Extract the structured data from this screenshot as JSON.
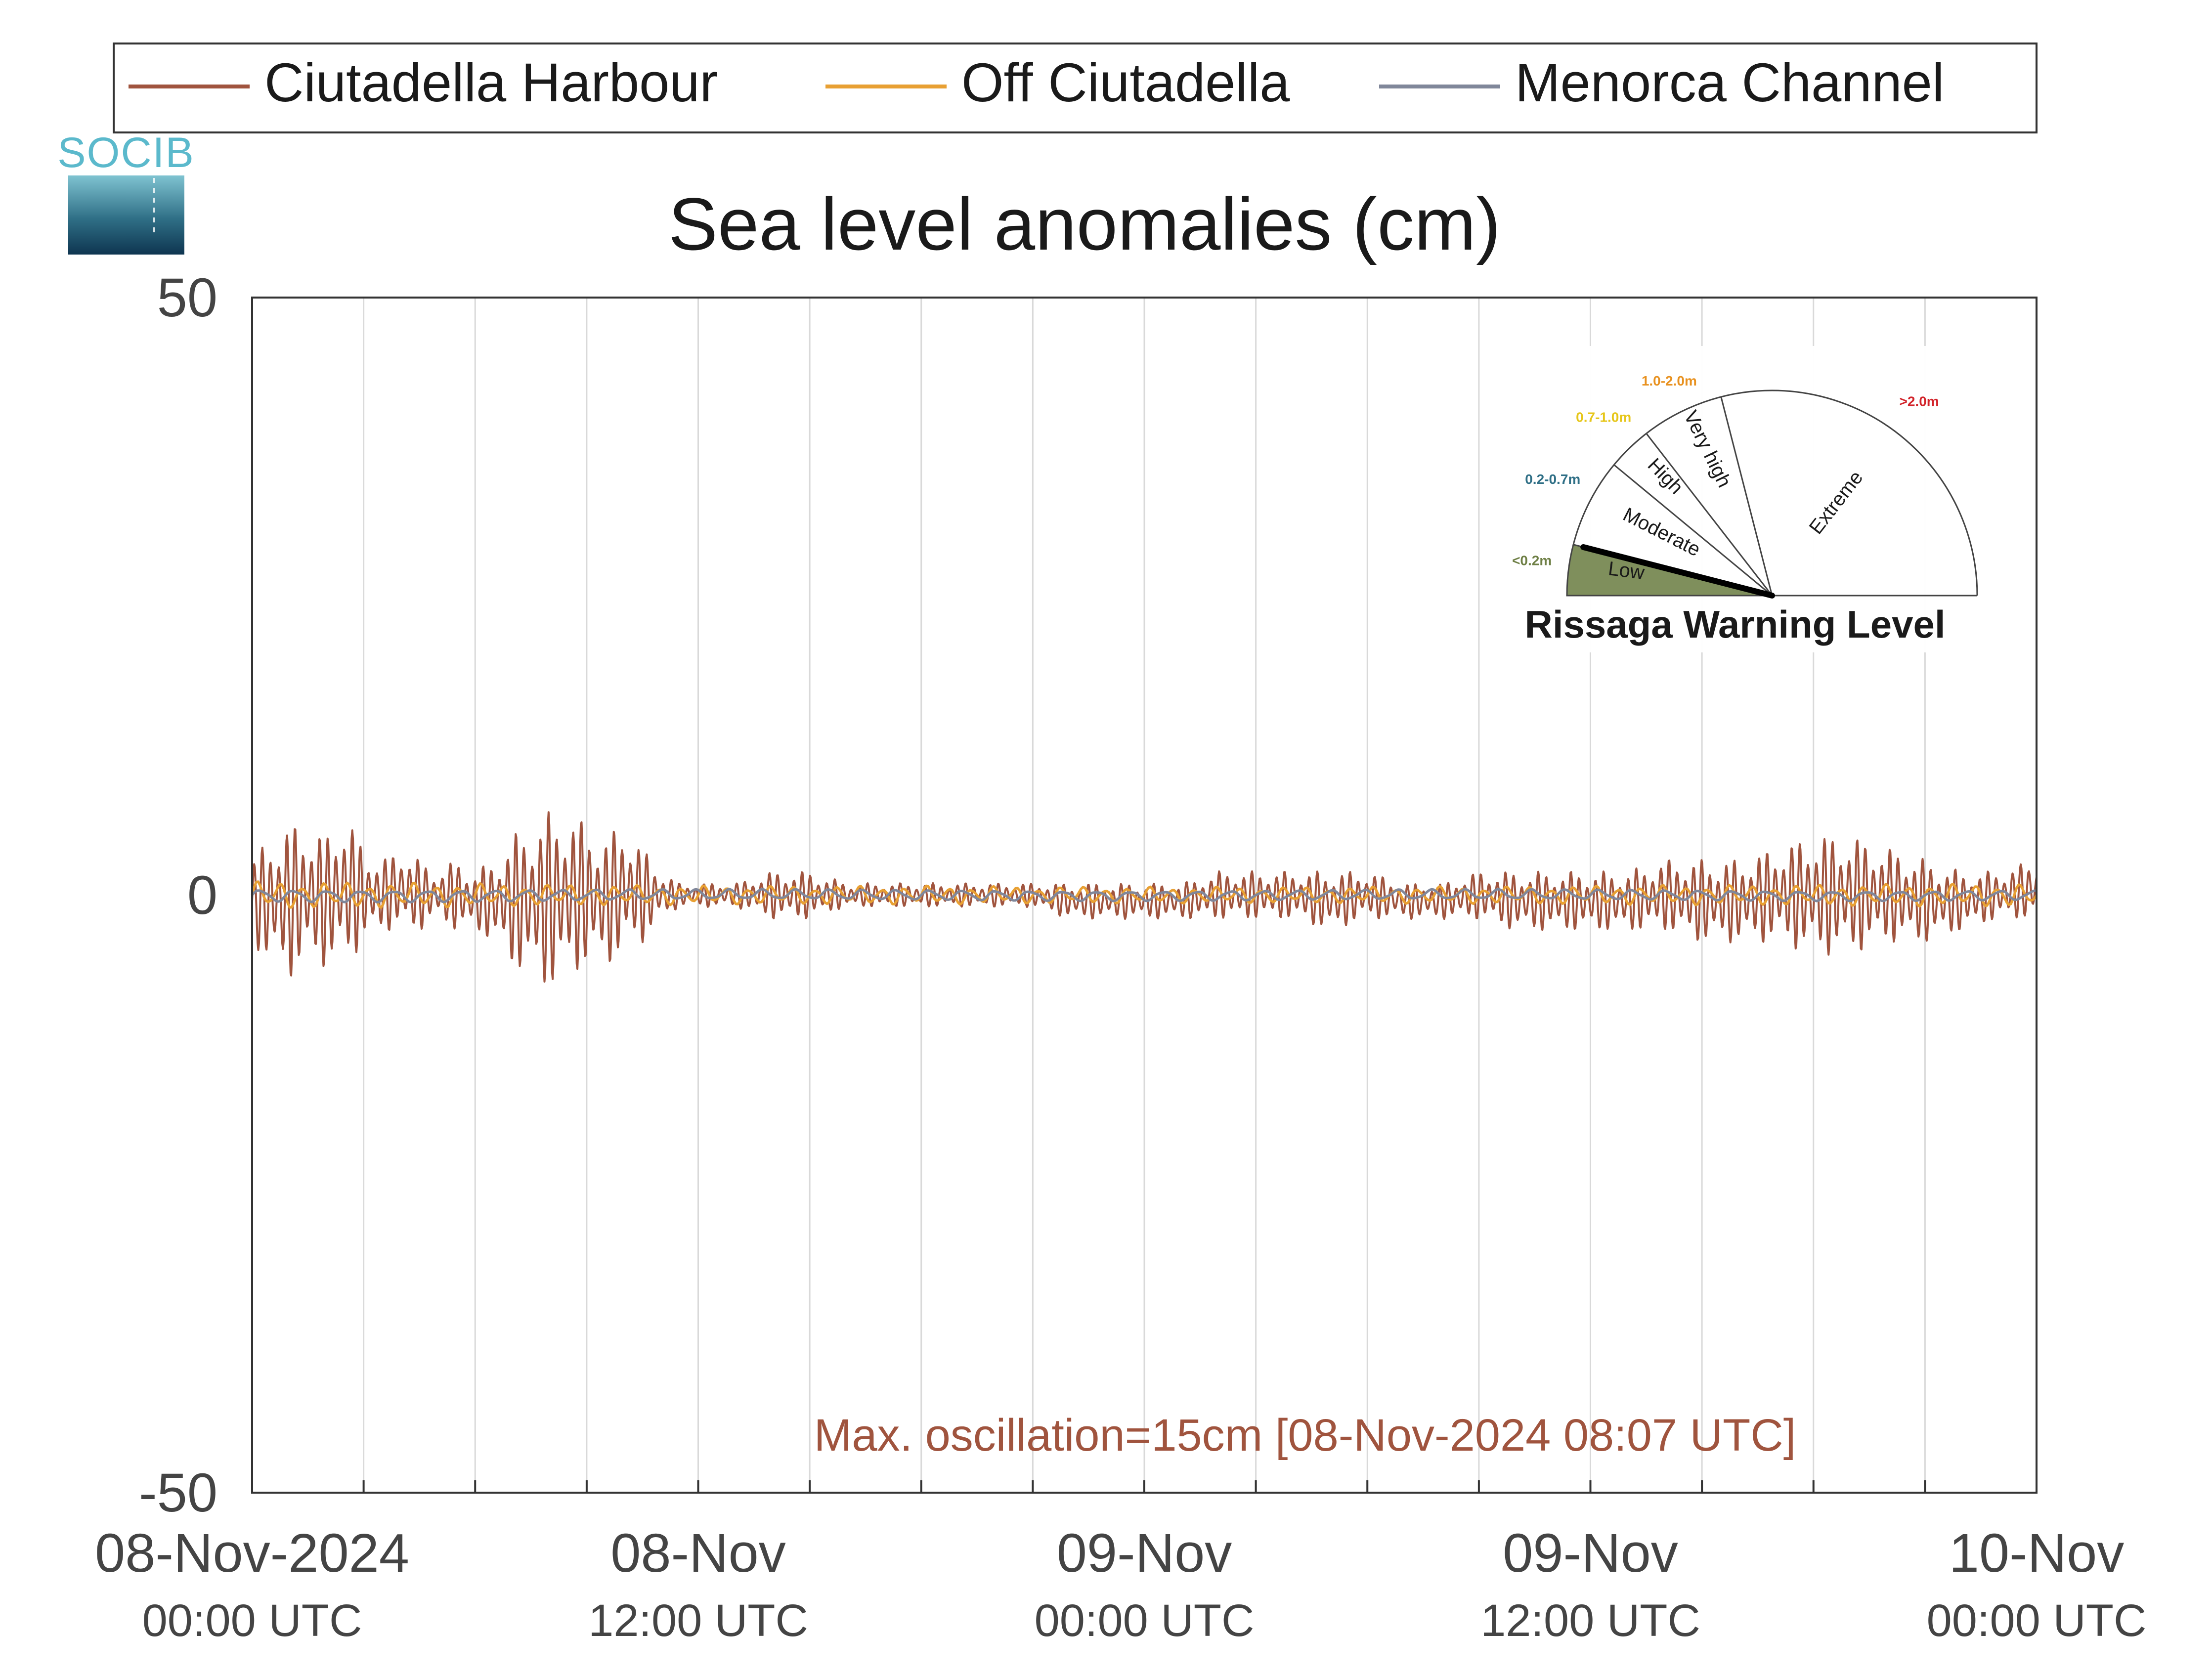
{
  "chart_data": {
    "type": "line",
    "title": "Sea level anomalies (cm)",
    "logo": "SOCIB",
    "ylabel": "",
    "xlabel": "",
    "ylim": [
      -50,
      50
    ],
    "y_ticks": [
      {
        "value": 50,
        "label": "50"
      },
      {
        "value": 0,
        "label": "0"
      },
      {
        "value": -50,
        "label": "-50"
      }
    ],
    "x_range_hours": [
      0,
      48
    ],
    "x_ticks": [
      {
        "hour": 0,
        "date": "08-Nov-2024",
        "time": "00:00 UTC"
      },
      {
        "hour": 12,
        "date": "08-Nov",
        "time": "12:00 UTC"
      },
      {
        "hour": 24,
        "date": "09-Nov",
        "time": "00:00 UTC"
      },
      {
        "hour": 36,
        "date": "09-Nov",
        "time": "12:00 UTC"
      },
      {
        "hour": 48,
        "date": "10-Nov",
        "time": "00:00 UTC"
      }
    ],
    "grid": "vertical",
    "legend_position": "top",
    "series": [
      {
        "name": "Ciutadella Harbour",
        "color": "#a0543e",
        "x": [
          0,
          0.5,
          1,
          1.5,
          2,
          2.5,
          3,
          3.5,
          4,
          4.5,
          5,
          5.5,
          6,
          6.5,
          7,
          7.5,
          8,
          8.5,
          9,
          9.5,
          10,
          10.5,
          11,
          11.5,
          12,
          13,
          14,
          15,
          16,
          17,
          18,
          19,
          20,
          21,
          22,
          23,
          24,
          25,
          26,
          27,
          28,
          29,
          30,
          31,
          32,
          33,
          34,
          35,
          36,
          37,
          38,
          39,
          40,
          41,
          42,
          43,
          44,
          45,
          46,
          47,
          48
        ],
        "upper": [
          3,
          5,
          6,
          6,
          5,
          7,
          4,
          3,
          4,
          3,
          2,
          3,
          2,
          3,
          5,
          6,
          7,
          7,
          6,
          5,
          6,
          4,
          2,
          1,
          1,
          1,
          2,
          2,
          1,
          1,
          1,
          1,
          1,
          1,
          1,
          1,
          1,
          1,
          2,
          2,
          2,
          2,
          2,
          1,
          1,
          2,
          2,
          2,
          2,
          2,
          3,
          3,
          3,
          4,
          5,
          5,
          4,
          3,
          2,
          2,
          3
        ],
        "lower": [
          -4,
          -6,
          -7,
          -6,
          -6,
          -6,
          -4,
          -3,
          -3,
          -3,
          -2,
          -3,
          -3,
          -4,
          -6,
          -7,
          -8,
          -7,
          -6,
          -6,
          -5,
          -4,
          -2,
          -1,
          -1,
          -1,
          -2,
          -2,
          -1,
          -1,
          -1,
          -1,
          -1,
          -1,
          -2,
          -2,
          -2,
          -2,
          -2,
          -2,
          -2,
          -3,
          -2,
          -2,
          -2,
          -2,
          -3,
          -3,
          -3,
          -3,
          -3,
          -4,
          -4,
          -4,
          -5,
          -5,
          -4,
          -4,
          -3,
          -2,
          -2
        ]
      },
      {
        "name": "Off Ciutadella",
        "color": "#e8a033",
        "x": [
          0,
          6,
          12,
          18,
          24,
          30,
          36,
          42,
          48
        ],
        "upper": [
          1.2,
          1,
          0.8,
          0.8,
          0.7,
          0.7,
          0.8,
          0.9,
          1
        ],
        "lower": [
          -1.2,
          -1,
          -0.8,
          -0.8,
          -0.7,
          -0.7,
          -0.8,
          -0.9,
          -1
        ]
      },
      {
        "name": "Menorca Channel",
        "color": "#80879a",
        "x": [
          0,
          6,
          12,
          18,
          24,
          30,
          36,
          42,
          48
        ],
        "upper": [
          0.6,
          0.6,
          0.5,
          0.5,
          0.5,
          0.5,
          0.5,
          0.5,
          0.5
        ],
        "lower": [
          -0.6,
          -0.6,
          -0.5,
          -0.5,
          -0.5,
          -0.5,
          -0.5,
          -0.5,
          -0.5
        ]
      }
    ],
    "annotation": "Max. oscillation=15cm [08-Nov-2024 08:07 UTC]",
    "annotation_color": "#a0543e",
    "gauge": {
      "title": "Rissaga Warning Level",
      "needle_level": "Low",
      "needle_fraction": 0.08,
      "needle_color": "#000000",
      "low_fill_color": "#7f8f5c",
      "sectors": [
        {
          "name": "Low",
          "range": "<0.2m",
          "range_color": "#6e7f45"
        },
        {
          "name": "Moderate",
          "range": "0.2-0.7m",
          "range_color": "#2f6f86"
        },
        {
          "name": "High",
          "range": "0.7-1.0m",
          "range_color": "#e6c619"
        },
        {
          "name": "Very high",
          "range": "1.0-2.0m",
          "range_color": "#e8911f"
        },
        {
          "name": "Extreme",
          "range": ">2.0m",
          "range_color": "#d2232a"
        }
      ]
    }
  }
}
